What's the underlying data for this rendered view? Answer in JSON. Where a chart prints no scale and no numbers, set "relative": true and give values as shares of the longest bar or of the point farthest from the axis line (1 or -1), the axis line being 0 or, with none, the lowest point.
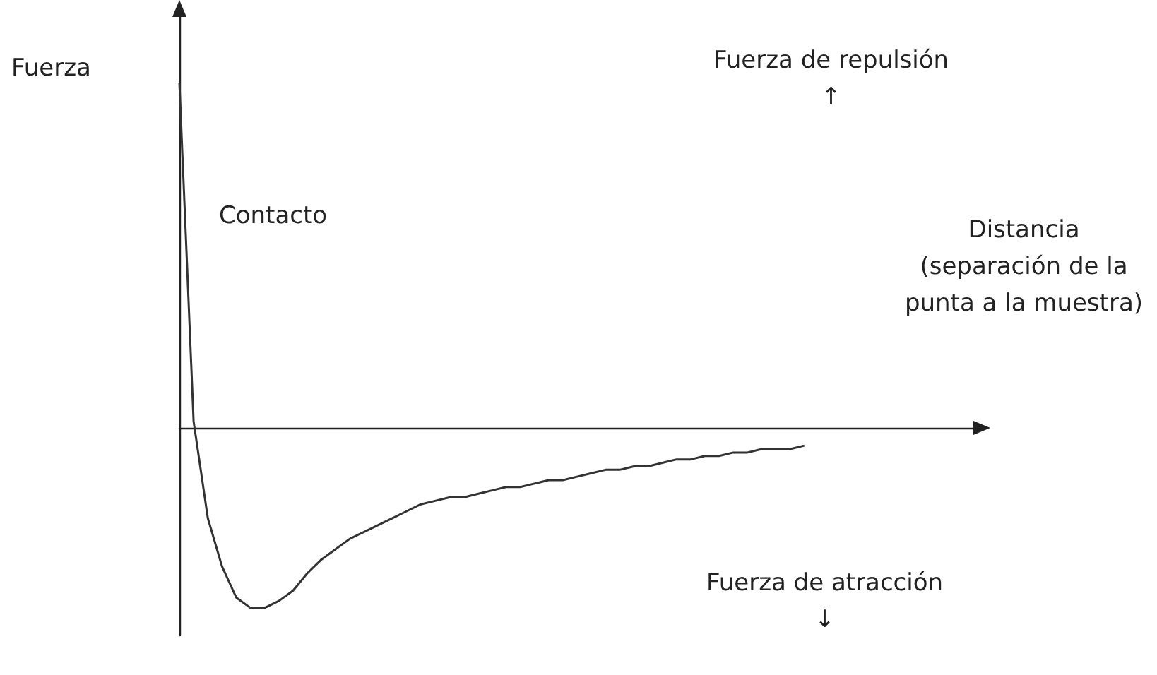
{
  "chart_data": {
    "type": "line",
    "relative": true,
    "ylabel": "Fuerza",
    "xlabel": "Distancia\n(separación de la\npunta a la muestra)",
    "annotations": [
      "Fuerza de repulsión\n↑",
      "Contacto",
      "Fuerza de atracción\n↓"
    ],
    "categories": [
      null,
      null,
      null,
      null,
      null,
      null,
      null,
      null,
      null,
      null,
      null,
      null,
      null,
      null,
      null,
      null,
      null,
      null,
      null,
      null,
      null,
      null,
      null,
      null,
      null,
      null,
      null,
      null,
      null,
      null,
      null,
      null,
      null,
      null,
      null,
      null,
      null,
      null,
      null,
      null,
      null,
      null,
      null,
      null,
      null,
      null,
      null,
      null,
      null,
      null,
      null,
      null,
      null,
      null,
      null,
      null,
      null
    ],
    "series": [
      {
        "color": "#333333",
        "values": [
          1,
          0.02,
          -0.26,
          -0.4,
          -0.49,
          -0.52,
          -0.52,
          -0.5,
          -0.47,
          -0.42,
          -0.38,
          -0.35,
          -0.32,
          -0.3,
          -0.28,
          -0.26,
          -0.24,
          -0.22,
          -0.21,
          -0.2,
          -0.2,
          -0.19,
          -0.18,
          -0.17,
          -0.17,
          -0.16,
          -0.15,
          -0.15,
          -0.14,
          -0.13,
          -0.12,
          -0.12,
          -0.11,
          -0.11,
          -0.1,
          -0.09,
          -0.09,
          -0.08,
          -0.08,
          -0.07,
          -0.07,
          -0.06,
          -0.06,
          -0.06,
          -0.05,
          null,
          null,
          null,
          null,
          null,
          null,
          null,
          null,
          null,
          null,
          null,
          null
        ]
      }
    ],
    "marker": "none",
    "line_style": "solid",
    "grid": false
  }
}
